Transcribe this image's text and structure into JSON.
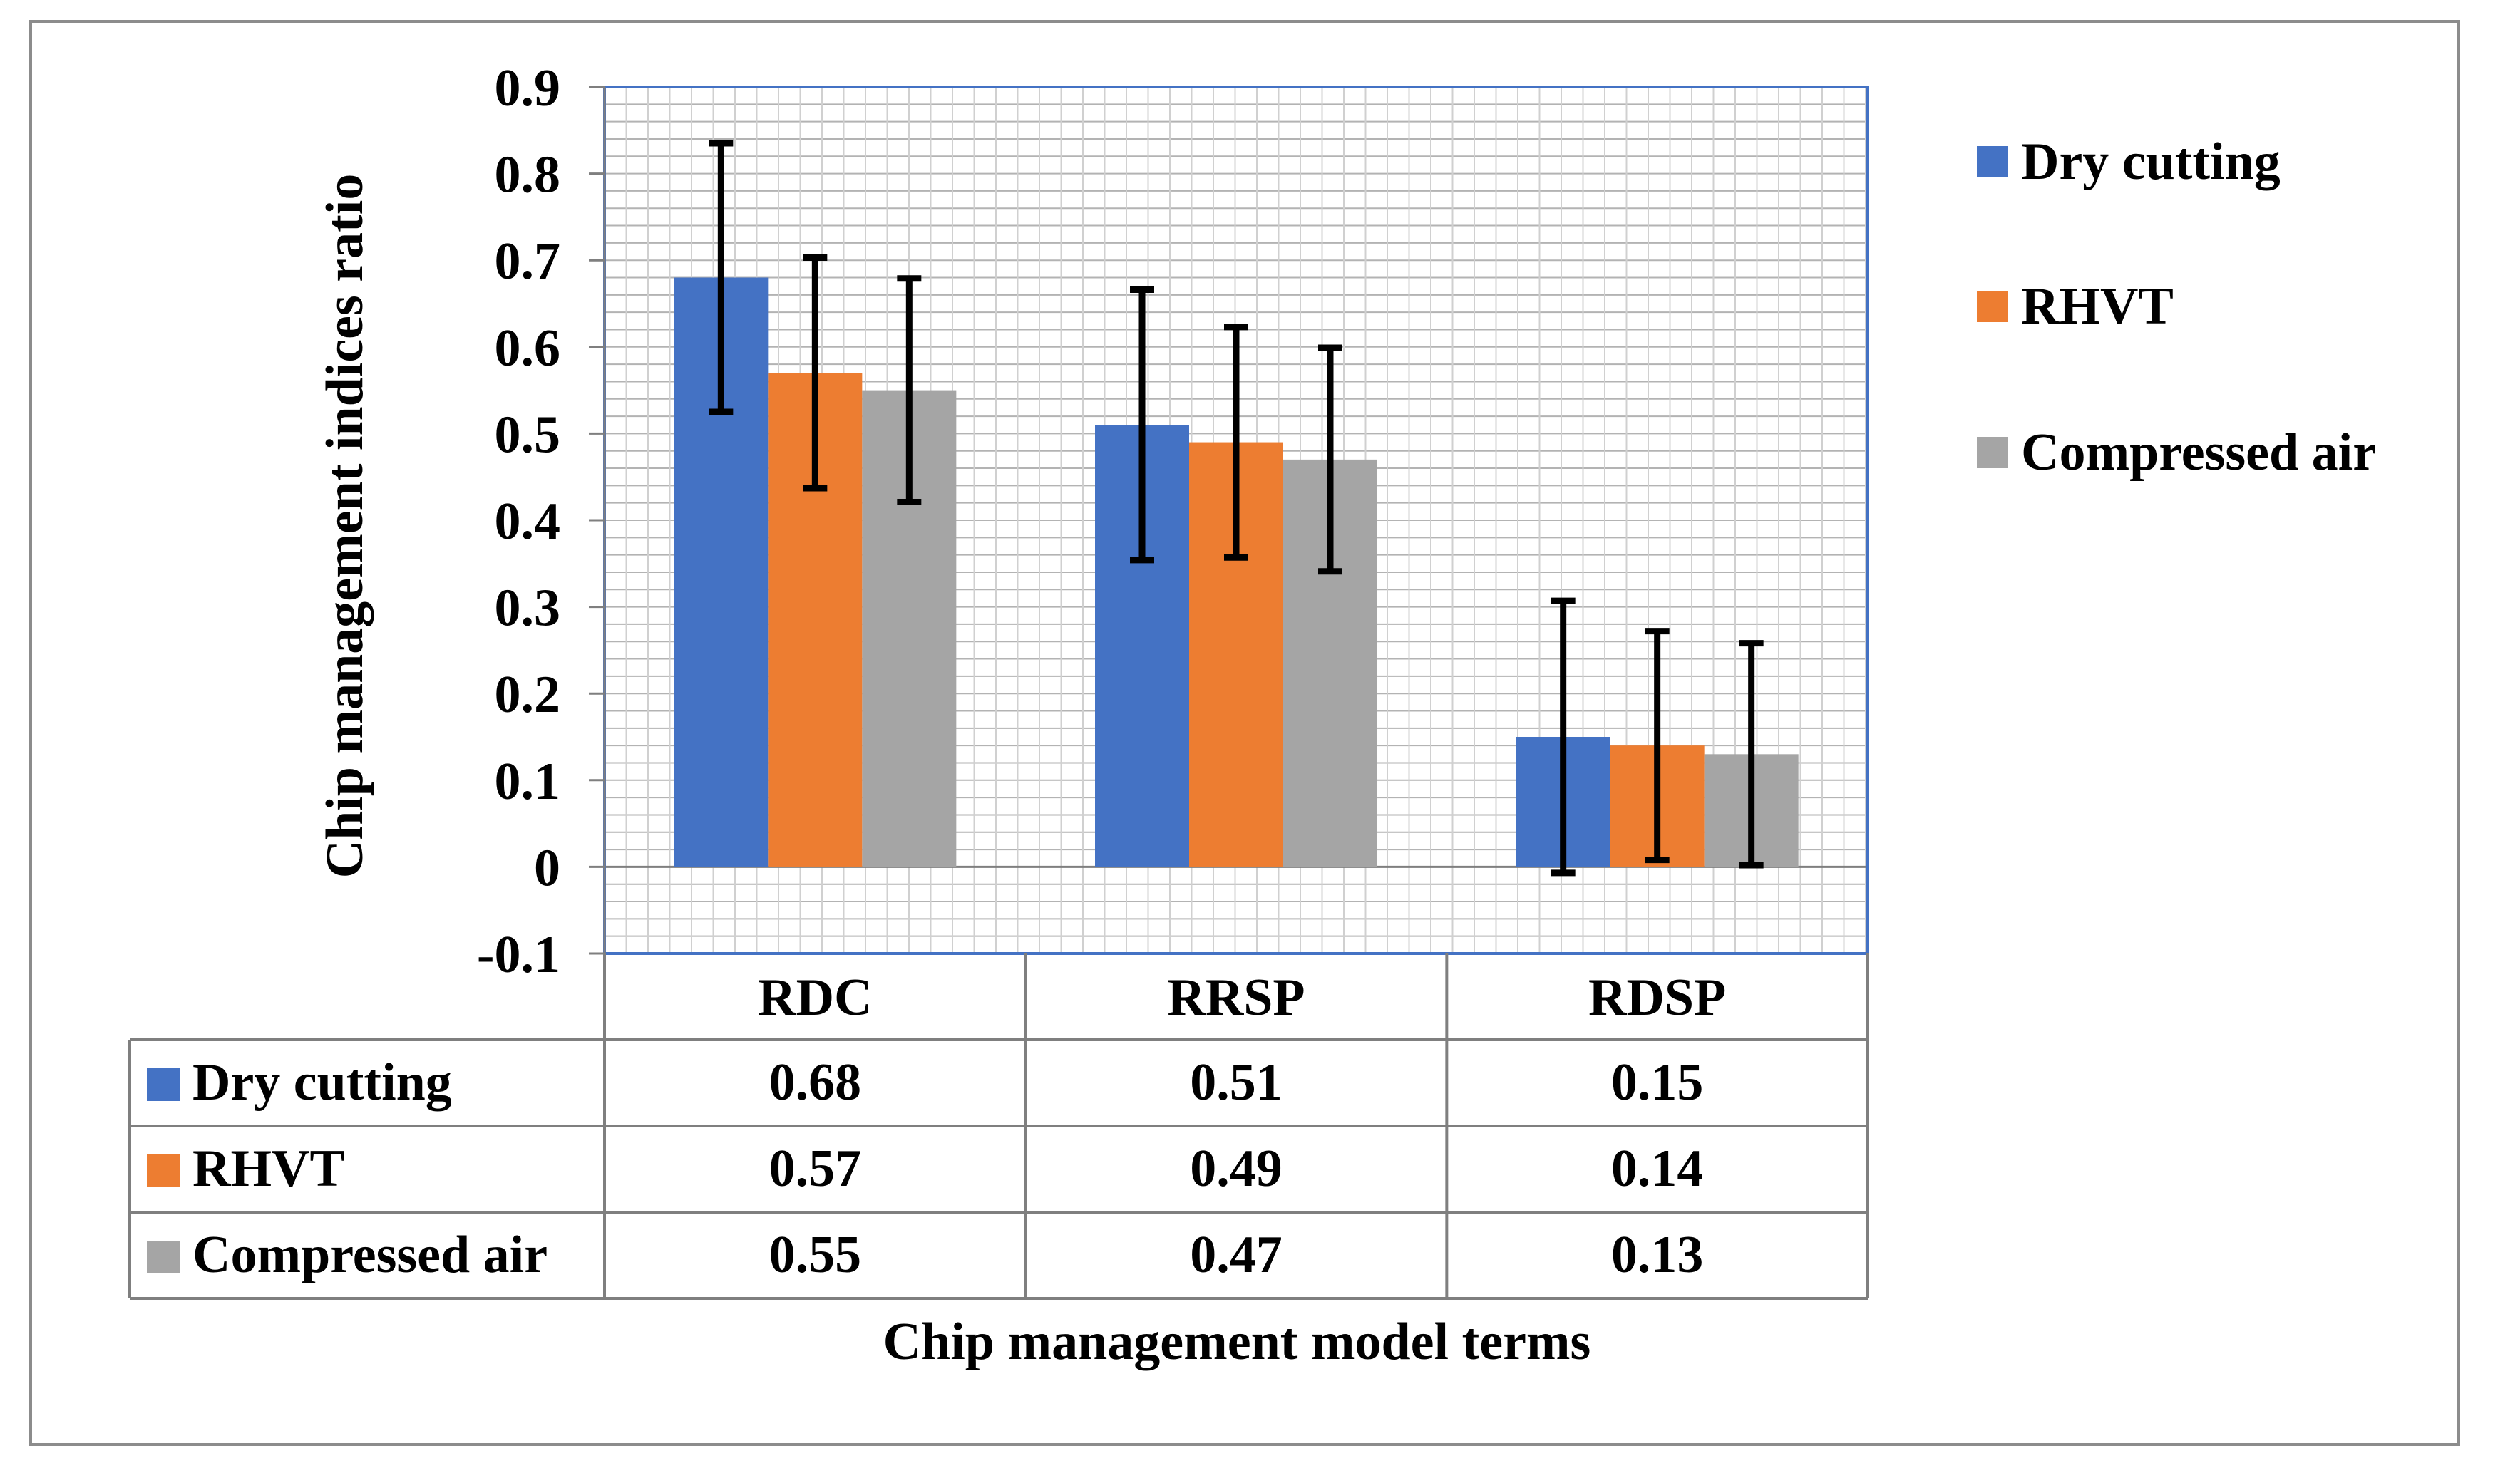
{
  "chart_data": {
    "type": "bar",
    "title": "",
    "xlabel": "Chip management model terms",
    "ylabel": "Chip management indices ratio",
    "categories": [
      "RDC",
      "RRSP",
      "RDSP"
    ],
    "ylim": [
      -0.1,
      0.9
    ],
    "yticks": [
      -0.1,
      0,
      0.1,
      0.2,
      0.3,
      0.4,
      0.5,
      0.6,
      0.7,
      0.8,
      0.9
    ],
    "ytick_labels": [
      "-0.1",
      "0",
      "0.1",
      "0.2",
      "0.3",
      "0.4",
      "0.5",
      "0.6",
      "0.7",
      "0.8",
      "0.9"
    ],
    "minor_grid_step": 0.02,
    "grid": true,
    "legend_position": "right",
    "series": [
      {
        "name": "Dry cutting",
        "color": "#4472C4",
        "values": [
          0.68,
          0.51,
          0.15
        ],
        "value_labels": [
          "0.68",
          "0.51",
          "0.15"
        ],
        "error_low": [
          0.525,
          0.354,
          -0.007
        ],
        "error_high": [
          0.835,
          0.666,
          0.307
        ]
      },
      {
        "name": "RHVT",
        "color": "#ED7D31",
        "values": [
          0.57,
          0.49,
          0.14
        ],
        "value_labels": [
          "0.57",
          "0.49",
          "0.14"
        ],
        "error_low": [
          0.437,
          0.357,
          0.008
        ],
        "error_high": [
          0.703,
          0.623,
          0.272
        ]
      },
      {
        "name": "Compressed air",
        "color": "#A5A5A5",
        "values": [
          0.55,
          0.47,
          0.13
        ],
        "value_labels": [
          "0.55",
          "0.47",
          "0.13"
        ],
        "error_low": [
          0.421,
          0.341,
          0.002
        ],
        "error_high": [
          0.679,
          0.599,
          0.258
        ]
      }
    ],
    "data_table": true
  }
}
